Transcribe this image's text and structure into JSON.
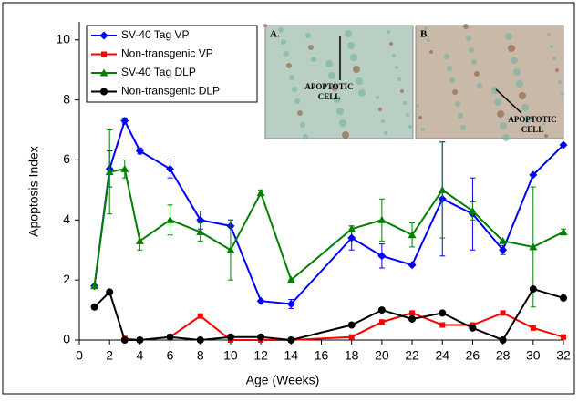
{
  "chart_data": {
    "type": "line",
    "xlabel": "Age (Weeks)",
    "ylabel": "Apoptosis Index",
    "xlim": [
      0,
      32
    ],
    "xticks": [
      0,
      2,
      4,
      6,
      8,
      10,
      12,
      14,
      16,
      18,
      20,
      22,
      24,
      26,
      28,
      30,
      32
    ],
    "ylim": [
      0,
      10.6
    ],
    "yticks": [
      0,
      2,
      4,
      6,
      8,
      10
    ],
    "legend": "upper left",
    "series": [
      {
        "name": "SV-40 Tag VP",
        "color": "#0000ff",
        "marker": "diamond",
        "x": [
          1,
          2,
          3,
          4,
          6,
          8,
          10,
          12,
          14,
          18,
          20,
          22,
          24,
          26,
          28,
          30,
          32
        ],
        "values": [
          1.8,
          5.7,
          7.3,
          6.3,
          5.7,
          4.0,
          3.8,
          1.3,
          1.2,
          3.4,
          2.8,
          2.5,
          4.7,
          4.2,
          3.0,
          5.5,
          6.5
        ],
        "errors": [
          0,
          0.6,
          0.1,
          0.1,
          0.3,
          0.3,
          0.2,
          0,
          0.15,
          0.4,
          0.4,
          0,
          1.9,
          1.2,
          0.15,
          0,
          0
        ]
      },
      {
        "name": "Non-transgenic VP",
        "color": "#ff0000",
        "marker": "square",
        "x": [
          3,
          4,
          6,
          8,
          10,
          12,
          14,
          18,
          20,
          22,
          24,
          26,
          28,
          30,
          32
        ],
        "values": [
          0.05,
          0,
          0.1,
          0.8,
          0,
          0,
          0,
          0.1,
          0.6,
          0.9,
          0.5,
          0.5,
          0.9,
          0.4,
          0.1
        ]
      },
      {
        "name": "SV-40 Tag DLP",
        "color": "#008000",
        "marker": "triangle",
        "x": [
          1,
          2,
          3,
          4,
          6,
          8,
          10,
          12,
          14,
          18,
          20,
          22,
          24,
          26,
          28,
          30,
          32
        ],
        "values": [
          1.8,
          5.6,
          5.7,
          3.3,
          4.0,
          3.6,
          3.0,
          4.9,
          2.0,
          3.7,
          4.0,
          3.5,
          5.0,
          4.3,
          3.3,
          3.1,
          3.6
        ],
        "errors": [
          0,
          1.4,
          0.3,
          0.3,
          0.5,
          0.3,
          1.0,
          0.1,
          0,
          0.1,
          0.7,
          0.4,
          1.6,
          0.3,
          0,
          2.0,
          0.1
        ]
      },
      {
        "name": "Non-transgenic DLP",
        "color": "#000000",
        "marker": "circle",
        "x": [
          1,
          2,
          3,
          4,
          6,
          8,
          10,
          12,
          14,
          18,
          20,
          22,
          24,
          26,
          28,
          30,
          32
        ],
        "values": [
          1.1,
          1.6,
          0,
          0,
          0.1,
          0,
          0.1,
          0.1,
          0,
          0.5,
          1.0,
          0.7,
          0.9,
          0.4,
          0,
          1.7,
          1.4
        ]
      }
    ],
    "insets": [
      {
        "label": "A.",
        "annotation": "APOPTOTIC CELL"
      },
      {
        "label": "B.",
        "annotation": "APOPTOTIC CELL"
      }
    ]
  }
}
